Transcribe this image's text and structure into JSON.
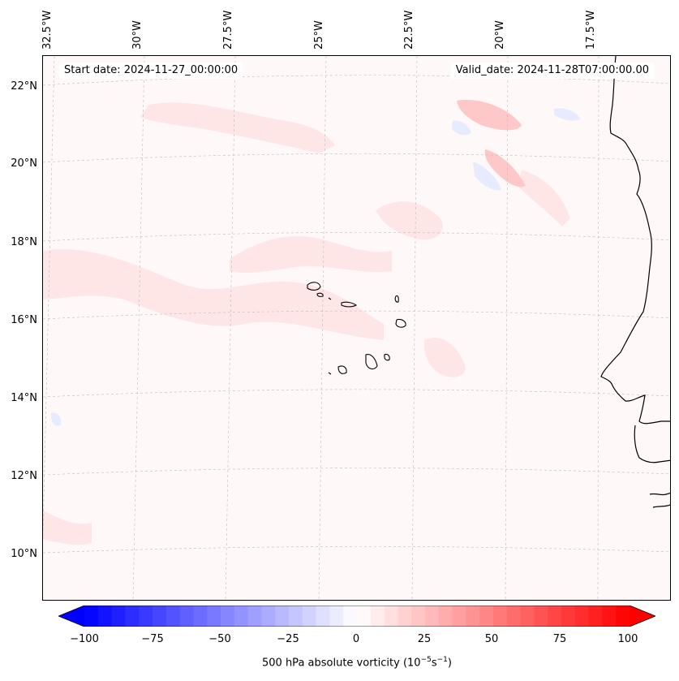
{
  "map": {
    "start_date": "Start date: 2024-11-27_00:00:00",
    "valid_date": "Valid_date: 2024-11-28T07:00:00.00",
    "lon_labels": [
      "32.5°W",
      "30°W",
      "27.5°W",
      "25°W",
      "22.5°W",
      "20°W",
      "17.5°W"
    ],
    "lat_labels": [
      "22°N",
      "20°N",
      "18°N",
      "16°N",
      "14°N",
      "12°N",
      "10°N"
    ],
    "colors": {
      "negative": "#0000ff",
      "positive": "#ff0000",
      "neutral": "#ffffff",
      "coast": "#000000"
    },
    "field": "500 hPa absolute vorticity"
  },
  "colorbar": {
    "ticks": [
      "−100",
      "−75",
      "−50",
      "−25",
      "0",
      "25",
      "50",
      "75",
      "100"
    ],
    "min": -100,
    "max": 100,
    "label_prefix": "500 hPa absolute vorticity (10",
    "label_exp1": "−5",
    "label_mid": "s",
    "label_exp2": "−1",
    "label_suffix": ")"
  }
}
